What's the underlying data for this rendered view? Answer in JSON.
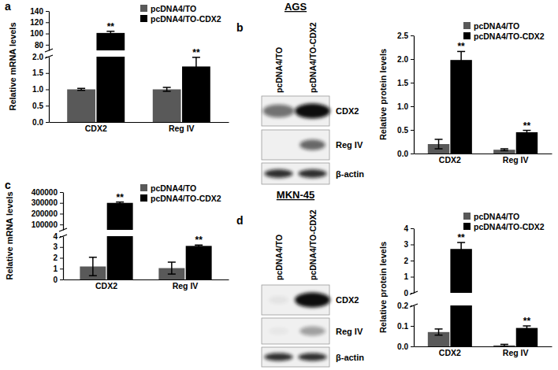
{
  "chart_data": [
    {
      "type": "bar",
      "y_label": "Relative mRNA levels",
      "categories": [
        "CDX2",
        "Reg IV"
      ],
      "series": [
        {
          "name": "pcDNA4/TO",
          "color": "#595959",
          "values": [
            1.0,
            1.0
          ],
          "errors": [
            0.03,
            0.06
          ]
        },
        {
          "name": "pcDNA4/TO-CDX2",
          "color": "#000000",
          "values": [
            101,
            1.7
          ],
          "errors": [
            3,
            0.28
          ]
        }
      ],
      "ylim": [
        [
          0,
          2
        ],
        [
          70,
          140
        ]
      ],
      "yticks": [
        [
          {
            "value": 0,
            "label": "0.0"
          },
          {
            "value": 0.5,
            "label": "0.5"
          },
          {
            "value": 1,
            "label": "1.0"
          },
          {
            "value": 1.5,
            "label": "1.5"
          },
          {
            "value": 2,
            "label": "2.0"
          }
        ],
        [
          80,
          100,
          120,
          140
        ]
      ],
      "annotations": [
        {
          "text": "**",
          "series": 1,
          "category": 0
        },
        {
          "text": "**",
          "series": 1,
          "category": 1
        }
      ],
      "legend": "top-right",
      "grid": false
    },
    {
      "type": "bar",
      "y_label": "Relative protein levels",
      "categories": [
        "CDX2",
        "Reg IV"
      ],
      "series": [
        {
          "name": "pcDNA4/TO",
          "color": "#595959",
          "values": [
            0.2,
            0.08
          ],
          "errors": [
            0.1,
            0.02
          ]
        },
        {
          "name": "pcDNA4/TO-CDX2",
          "color": "#000000",
          "values": [
            1.98,
            0.45
          ],
          "errors": [
            0.18,
            0.04
          ]
        }
      ],
      "ylim": [
        0,
        2.5
      ],
      "yticks": [
        {
          "value": 0,
          "label": "0.0"
        },
        {
          "value": 0.5,
          "label": "0.5"
        },
        {
          "value": 1,
          "label": "1.0"
        },
        {
          "value": 1.5,
          "label": "1.5"
        },
        {
          "value": 2,
          "label": "2.0"
        },
        {
          "value": 2.5,
          "label": "2.5"
        }
      ],
      "annotations": [
        {
          "text": "**",
          "series": 1,
          "category": 0
        },
        {
          "text": "**",
          "series": 1,
          "category": 1
        }
      ],
      "legend": "top-right",
      "grid": false
    },
    {
      "type": "bar",
      "y_label": "Relative mRNA levels",
      "categories": [
        "CDX2",
        "Reg IV"
      ],
      "series": [
        {
          "name": "pcDNA4/TO",
          "color": "#595959",
          "values": [
            1.2,
            1.05
          ],
          "errors": [
            0.85,
            0.55
          ]
        },
        {
          "name": "pcDNA4/TO-CDX2",
          "color": "#000000",
          "values": [
            300000,
            3.1
          ],
          "errors": [
            8000,
            0.08
          ]
        }
      ],
      "ylim": [
        [
          0,
          4
        ],
        [
          50000,
          400000
        ]
      ],
      "yticks": [
        [
          0,
          1,
          2,
          3,
          4
        ],
        [
          100000,
          200000,
          300000,
          400000
        ]
      ],
      "annotations": [
        {
          "text": "**",
          "series": 1,
          "category": 0
        },
        {
          "text": "**",
          "series": 1,
          "category": 1
        }
      ],
      "legend": "top-right",
      "grid": false
    },
    {
      "type": "bar",
      "y_label": "Relative protein levels",
      "categories": [
        "CDX2",
        "Reg IV"
      ],
      "series": [
        {
          "name": "pcDNA4/TO",
          "color": "#595959",
          "values": [
            0.07,
            0.005
          ],
          "errors": [
            0.015,
            0.005
          ]
        },
        {
          "name": "pcDNA4/TO-CDX2",
          "color": "#000000",
          "values": [
            2.72,
            0.09
          ],
          "errors": [
            0.4,
            0.01
          ]
        }
      ],
      "ylim": [
        [
          0,
          0.2
        ],
        [
          0,
          4
        ]
      ],
      "yticks": [
        [
          {
            "value": 0,
            "label": "0.0"
          },
          {
            "value": 0.1,
            "label": "0.1"
          },
          {
            "value": 0.2,
            "label": "0.2"
          }
        ],
        [
          0,
          1,
          2,
          3,
          4
        ]
      ],
      "annotations": [
        {
          "text": "**",
          "series": 1,
          "category": 0
        },
        {
          "text": "**",
          "series": 1,
          "category": 1
        }
      ],
      "legend": "top-right",
      "grid": false
    }
  ],
  "figure": {
    "panel_labels": [
      "a",
      "b",
      "c",
      "d"
    ],
    "sections": [
      "AGS",
      "MKN-45"
    ],
    "blots": [
      {
        "lanes": [
          "pcDNA4/TO",
          "pcDNA4/TO-CDX2"
        ],
        "bands": [
          "CDX2",
          "Reg IV",
          "β-actin"
        ]
      },
      {
        "lanes": [
          "pcDNA4/TO",
          "pcDNA4/TO-CDX2"
        ],
        "bands": [
          "CDX2",
          "Reg IV",
          "β-actin"
        ]
      }
    ]
  }
}
